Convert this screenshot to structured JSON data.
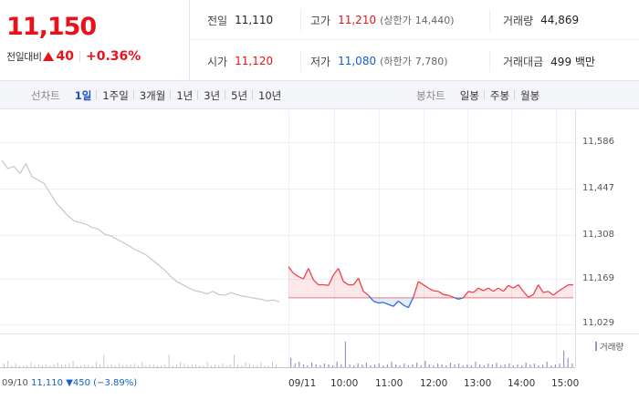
{
  "quote": {
    "price": "11,150",
    "change_label": "전일대비",
    "change_value": "40",
    "change_pct": "+0.36%",
    "prev_close_label": "전일",
    "prev_close": "11,110",
    "high_label": "고가",
    "high": "11,210",
    "upper_limit_label": "(상한가",
    "upper_limit": "14,440)",
    "volume_label": "거래량",
    "volume": "44,869",
    "open_label": "시가",
    "open": "11,120",
    "low_label": "저가",
    "low": "11,080",
    "lower_limit_label": "(하한가",
    "lower_limit": "7,780)",
    "amount_label": "거래대금",
    "amount": "499 백만"
  },
  "toolbar": {
    "line_label": "선차트",
    "line_periods": [
      "1일",
      "1주일",
      "3개월",
      "1년",
      "3년",
      "5년",
      "10년"
    ],
    "active_period": "1일",
    "candle_label": "봉차트",
    "candle_periods": [
      "일봉",
      "주봉",
      "월봉"
    ]
  },
  "chart_data": {
    "type": "line",
    "y_ticks": [
      "11,586",
      "11,447",
      "11,308",
      "11,169",
      "11,029"
    ],
    "ylim": [
      11029,
      11586
    ],
    "x_ticks": [
      "09/11",
      "10:00",
      "11:00",
      "12:00",
      "13:00",
      "14:00",
      "15:00"
    ],
    "prev_close": 11110,
    "volume_legend": "거래량",
    "prev_day_footer": {
      "date": "09/10",
      "close": "11,110",
      "change": "▼450",
      "pct": "(−3.89%)"
    },
    "prev_day_series": [
      11530,
      11505,
      11512,
      11490,
      11520,
      11480,
      11470,
      11460,
      11430,
      11400,
      11380,
      11360,
      11345,
      11340,
      11335,
      11325,
      11320,
      11305,
      11300,
      11290,
      11280,
      11270,
      11258,
      11250,
      11240,
      11225,
      11210,
      11195,
      11175,
      11160,
      11150,
      11140,
      11132,
      11128,
      11122,
      11130,
      11120,
      11118,
      11126,
      11120,
      11115,
      11112,
      11108,
      11106,
      11100,
      11104,
      11098
    ],
    "today_series": [
      11205,
      11185,
      11175,
      11168,
      11200,
      11165,
      11150,
      11150,
      11148,
      11180,
      11200,
      11160,
      11150,
      11150,
      11170,
      11130,
      11118,
      11100,
      11094,
      11096,
      11090,
      11084,
      11100,
      11088,
      11080,
      11112,
      11160,
      11150,
      11140,
      11132,
      11130,
      11120,
      11118,
      11112,
      11106,
      11110,
      11130,
      11126,
      11140,
      11132,
      11140,
      11130,
      11140,
      11130,
      11148,
      11140,
      11150,
      11130,
      11112,
      11120,
      11150,
      11126,
      11130,
      11118,
      11130,
      11140,
      11150,
      11150
    ]
  }
}
